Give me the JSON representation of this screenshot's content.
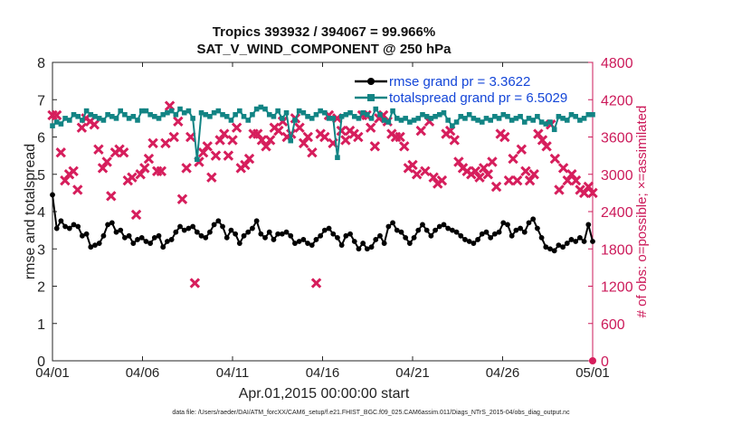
{
  "chart_data": {
    "type": "line",
    "title": "Tropics 393932 / 394067 = 99.966%",
    "subtitle": "SAT_V_WIND_COMPONENT @ 250 hPa",
    "xlabel": "Apr.01,2015 00:00:00 start",
    "ylabel": "rmse and totalspread",
    "ylabel_right": "# of obs: o=possible; ×=assimilated",
    "footnote": "data file: /Users/raeder/DAI/ATM_forcXX/CAM6_setup/f.e21.FHIST_BGC.f09_025.CAM6assim.011/Diags_NTrS_2015-04/obs_diag_output.nc",
    "xlim": [
      0,
      30
    ],
    "xticks": [
      0,
      5,
      10,
      15,
      20,
      25,
      30
    ],
    "xtick_labels": [
      "04/01",
      "04/06",
      "04/11",
      "04/16",
      "04/21",
      "04/26",
      "05/01"
    ],
    "ylim": [
      0,
      8
    ],
    "yticks": [
      "0",
      "1",
      "2",
      "3",
      "4",
      "5",
      "6",
      "7",
      "8"
    ],
    "ylim_right": [
      0,
      4800
    ],
    "yticks_right": [
      "0",
      "600",
      "1200",
      "1800",
      "2400",
      "3000",
      "3600",
      "4200",
      "4800"
    ],
    "colors": {
      "rmse": "#000000",
      "totalspread": "#128484",
      "obs": "#d61e5c",
      "legend_text": "#1446d8",
      "right_axis": "#cc1a5a"
    },
    "series": [
      {
        "name": "rmse grand pr = 3.3622",
        "axis": "left",
        "marker": "circle",
        "values": [
          4.45,
          3.55,
          3.75,
          3.6,
          3.55,
          3.65,
          3.6,
          3.35,
          3.4,
          3.05,
          3.1,
          3.15,
          3.35,
          3.65,
          3.7,
          3.45,
          3.5,
          3.3,
          3.35,
          3.15,
          3.25,
          3.3,
          3.2,
          3.15,
          3.3,
          3.35,
          3.05,
          3.2,
          3.25,
          3.45,
          3.6,
          3.5,
          3.55,
          3.6,
          3.45,
          3.35,
          3.3,
          3.45,
          3.65,
          3.75,
          3.6,
          3.3,
          3.5,
          3.4,
          3.15,
          3.35,
          3.45,
          3.55,
          3.75,
          3.4,
          3.3,
          3.45,
          3.25,
          3.4,
          3.4,
          3.45,
          3.35,
          3.15,
          3.2,
          3.25,
          3.15,
          3.1,
          3.25,
          3.35,
          3.5,
          3.55,
          3.4,
          3.3,
          3.1,
          3.35,
          3.4,
          3.2,
          3.0,
          3.15,
          3.0,
          3.05,
          3.25,
          3.35,
          3.15,
          3.6,
          3.7,
          3.5,
          3.45,
          3.3,
          3.15,
          3.3,
          3.5,
          3.65,
          3.5,
          3.35,
          3.5,
          3.6,
          3.65,
          3.55,
          3.5,
          3.45,
          3.35,
          3.25,
          3.2,
          3.15,
          3.25,
          3.4,
          3.45,
          3.3,
          3.4,
          3.45,
          3.7,
          3.65,
          3.35,
          3.5,
          3.55,
          3.45,
          3.7,
          3.8,
          3.55,
          3.3,
          3.05,
          3.0,
          2.95,
          3.1,
          3.05,
          3.15,
          3.25,
          3.2,
          3.3,
          3.2,
          3.65,
          3.2
        ]
      },
      {
        "name": "totalspread grand pr = 6.5029",
        "axis": "left",
        "marker": "square",
        "values": [
          6.3,
          6.4,
          6.35,
          6.5,
          6.45,
          6.6,
          6.55,
          6.45,
          6.7,
          6.6,
          6.55,
          6.5,
          6.45,
          6.6,
          6.55,
          6.5,
          6.7,
          6.6,
          6.5,
          6.55,
          6.45,
          6.7,
          6.7,
          6.6,
          6.55,
          6.5,
          6.6,
          6.65,
          6.7,
          6.6,
          6.75,
          6.65,
          6.7,
          6.5,
          5.4,
          6.65,
          6.6,
          6.55,
          6.65,
          6.7,
          6.6,
          6.55,
          6.45,
          6.6,
          6.7,
          6.55,
          6.45,
          6.6,
          6.75,
          6.8,
          6.75,
          6.6,
          6.55,
          6.7,
          6.5,
          6.65,
          5.9,
          6.45,
          6.7,
          6.65,
          6.55,
          6.5,
          6.6,
          6.7,
          6.65,
          6.5,
          6.5,
          5.45,
          6.55,
          6.6,
          6.65,
          6.55,
          6.5,
          6.65,
          6.6,
          6.5,
          6.75,
          6.6,
          6.45,
          6.4,
          6.7,
          6.5,
          6.45,
          6.5,
          6.4,
          6.45,
          6.5,
          6.6,
          6.55,
          6.5,
          6.55,
          6.6,
          6.65,
          6.45,
          6.3,
          6.4,
          6.55,
          6.5,
          6.6,
          6.5,
          6.45,
          6.4,
          6.5,
          6.45,
          6.55,
          6.5,
          6.6,
          6.55,
          6.45,
          6.5,
          6.55,
          6.4,
          6.5,
          6.45,
          6.55,
          6.4,
          6.35,
          6.4,
          6.2,
          6.55,
          6.5,
          6.45,
          6.6,
          6.55,
          6.45,
          6.5,
          6.6,
          6.6
        ]
      },
      {
        "name": "assimilated observations",
        "axis": "right",
        "marker": "x",
        "values": [
          3950,
          3950,
          3350,
          2900,
          3000,
          3050,
          2750,
          3750,
          3900,
          3850,
          3800,
          3400,
          3100,
          3200,
          2650,
          3350,
          3400,
          3350,
          2900,
          2950,
          2350,
          3000,
          3100,
          3250,
          3500,
          3050,
          3050,
          3500,
          4100,
          3600,
          3850,
          2600,
          3100,
          3600,
          1250,
          3200,
          3350,
          3450,
          2950,
          3300,
          3550,
          3650,
          3300,
          3550,
          3750,
          3100,
          3150,
          3250,
          3650,
          3650,
          3550,
          3450,
          3550,
          3750,
          3700,
          3850,
          3600,
          3650,
          3900,
          3750,
          3500,
          3600,
          3350,
          1250,
          3650,
          3600,
          3950,
          3500,
          3900,
          3700,
          3550,
          3700,
          3650,
          3600,
          3950,
          3950,
          3750,
          3450,
          3900,
          3950,
          3850,
          3650,
          3600,
          3600,
          3450,
          3100,
          3150,
          3000,
          3700,
          3050,
          3850,
          2950,
          2850,
          2900,
          3650,
          3700,
          3550,
          3200,
          3100,
          3050,
          3000,
          3050,
          2950,
          3100,
          3000,
          3200,
          2800,
          3650,
          3600,
          2900,
          3250,
          2900,
          3400,
          3050,
          2900,
          3000,
          3650,
          3550,
          3450,
          3800,
          3250,
          2750,
          3100,
          2900,
          3000,
          2900,
          2750,
          2700,
          2800,
          2700
        ]
      }
    ]
  }
}
